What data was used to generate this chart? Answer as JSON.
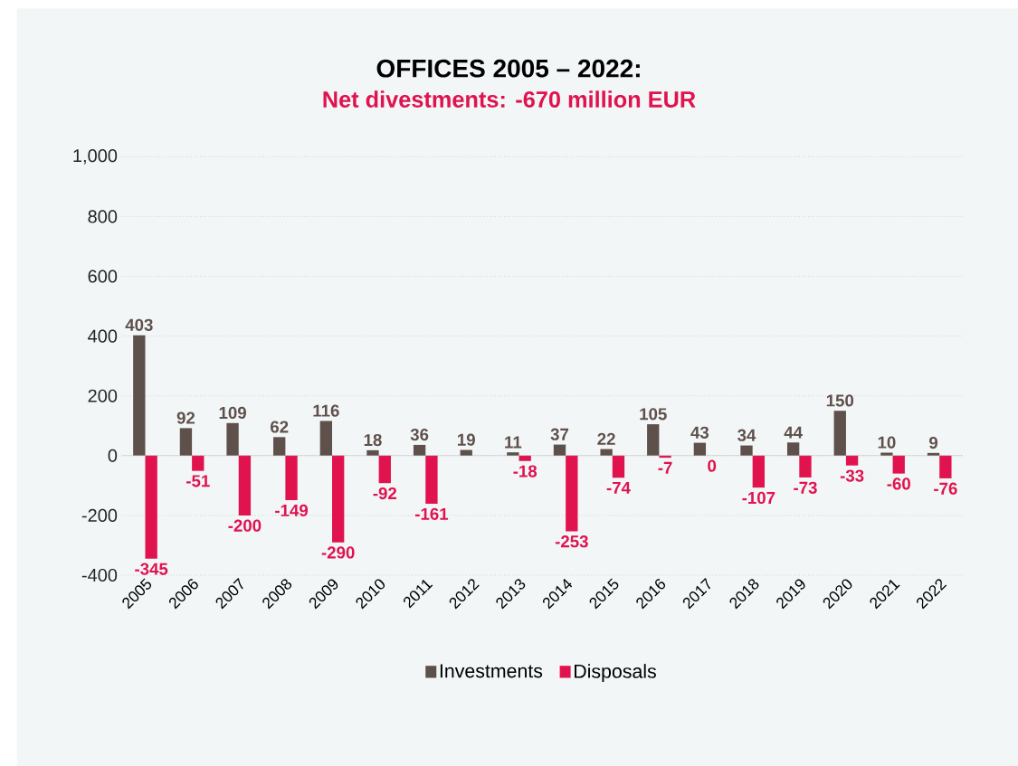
{
  "chart_data": {
    "type": "bar",
    "title": "OFFICES 2005 – 2022:",
    "subtitle": "Net divestments: -670 million EUR",
    "categories": [
      "2005",
      "2006",
      "2007",
      "2008",
      "2009",
      "2010",
      "2011",
      "2012",
      "2013",
      "2014",
      "2015",
      "2016",
      "2017",
      "2018",
      "2019",
      "2020",
      "2021",
      "2022"
    ],
    "series": [
      {
        "name": "Investments",
        "color": "#5e504b",
        "values": [
          403,
          92,
          109,
          62,
          116,
          18,
          36,
          19,
          11,
          37,
          22,
          105,
          43,
          34,
          44,
          150,
          10,
          9
        ],
        "value_labels": [
          "403",
          "92",
          "109",
          "62",
          "116",
          "18",
          "36",
          "19",
          "11",
          "37",
          "22",
          "105",
          "43",
          "34",
          "44",
          "150",
          "10",
          "9"
        ]
      },
      {
        "name": "Disposals",
        "color": "#e0134f",
        "values": [
          -345,
          -51,
          -200,
          -149,
          -290,
          -92,
          -161,
          null,
          -18,
          -253,
          -74,
          -7,
          0,
          -107,
          -73,
          -33,
          -60,
          -76
        ],
        "value_labels": [
          "-345",
          "-51",
          "-200",
          "-149",
          "-290",
          "-92",
          "-161",
          null,
          "-18",
          "-253",
          "-74",
          "-7",
          "0",
          "-107",
          "-73",
          "-33",
          "-60",
          "-76"
        ]
      }
    ],
    "ylim": [
      -400,
      1000
    ],
    "yticks": [
      -400,
      -200,
      0,
      200,
      400,
      600,
      800,
      {
        "value": 1000,
        "label": "1,000"
      }
    ],
    "grid": "y",
    "legend": "bottom"
  }
}
